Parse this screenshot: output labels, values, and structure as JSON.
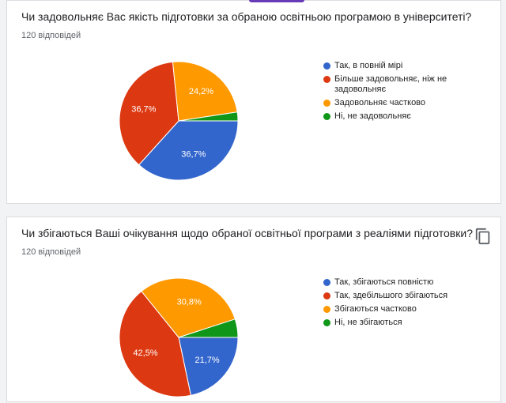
{
  "chart_data": [
    {
      "type": "pie",
      "title": "Чи задовольняє Вас якість підготовки за обраною освітньою програмою в університеті?",
      "subtitle": "120 відповідей",
      "categories": [
        "Так, в повній мірі",
        "Більше задовольняє, ніж не задовольняє",
        "Задовольняє частково",
        "Ні, не задовольняє"
      ],
      "values": [
        36.7,
        36.7,
        24.2,
        2.4
      ],
      "value_labels": [
        "36,7%",
        "36,7%",
        "24,2%",
        null
      ],
      "colors": [
        "#3366cc",
        "#dc3912",
        "#ff9900",
        "#109618"
      ]
    },
    {
      "type": "pie",
      "title": "Чи збігаються Ваші очікування щодо обраної освітньої програми з реаліями підготовки?",
      "subtitle": "120 відповідей",
      "categories": [
        "Так, збігаються повністю",
        "Так, здебільшого збігаються",
        "Збігаються частково",
        "Ні, не збігаються"
      ],
      "values": [
        21.7,
        42.5,
        30.8,
        5.0
      ],
      "value_labels": [
        "21,7%",
        "42,5%",
        "30,8%",
        null
      ],
      "colors": [
        "#3366cc",
        "#dc3912",
        "#ff9900",
        "#109618"
      ]
    }
  ]
}
